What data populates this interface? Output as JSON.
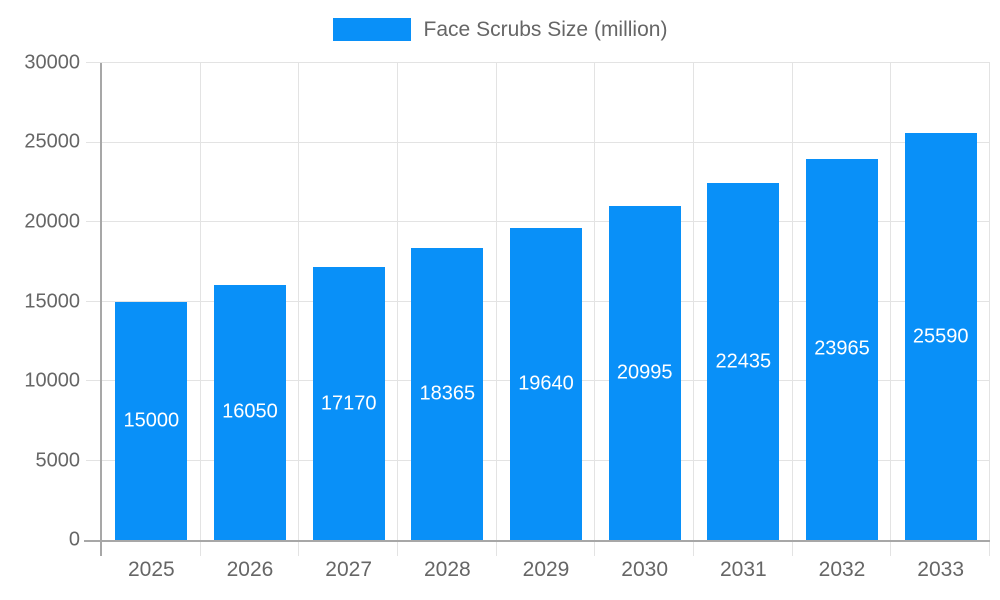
{
  "legend": {
    "label": "Face Scrubs Size (million)"
  },
  "chart_data": {
    "type": "bar",
    "title": "Face Scrubs Size (million)",
    "categories": [
      "2025",
      "2026",
      "2027",
      "2028",
      "2029",
      "2030",
      "2031",
      "2032",
      "2033"
    ],
    "values": [
      15000,
      16050,
      17170,
      18365,
      19640,
      20995,
      22435,
      23965,
      25590
    ],
    "series": [
      {
        "name": "Face Scrubs Size (million)",
        "values": [
          15000,
          16050,
          17170,
          18365,
          19640,
          20995,
          22435,
          23965,
          25590
        ]
      }
    ],
    "xlabel": "",
    "ylabel": "",
    "ylim": [
      0,
      30000
    ],
    "yticks": [
      0,
      5000,
      10000,
      15000,
      20000,
      25000,
      30000
    ],
    "grid": true,
    "legend_position": "top",
    "value_labels": "inside-center",
    "colors": {
      "bar": "#0990f8",
      "value_label": "#ffffff",
      "axis_text": "#666666",
      "grid_line": "#e3e3e3",
      "axis_line": "#a7a7a7"
    }
  }
}
